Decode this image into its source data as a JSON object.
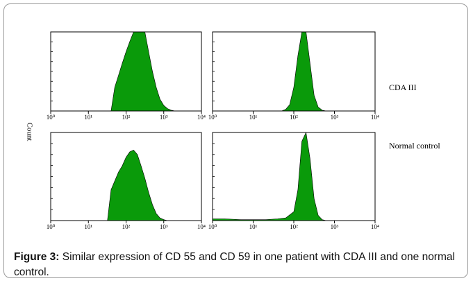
{
  "chart_data": [
    {
      "type": "area",
      "x": [
        40,
        50,
        63,
        79,
        100,
        126,
        158,
        200,
        251,
        316,
        398,
        501,
        631,
        794,
        1000,
        1259,
        1585,
        2000
      ],
      "values": [
        0,
        30,
        45,
        60,
        75,
        88,
        100,
        100,
        100,
        100,
        75,
        50,
        30,
        15,
        7,
        3,
        1,
        0
      ],
      "color": "#0a9a0a",
      "log_x": true,
      "xlim": [
        1,
        10000
      ],
      "ylim": [
        0,
        100
      ],
      "xticks": [
        {
          "value": 1,
          "label": "10⁰"
        },
        {
          "value": 10,
          "label": "10¹"
        },
        {
          "value": 100,
          "label": "10²"
        },
        {
          "value": 1000,
          "label": "10³"
        },
        {
          "value": 10000,
          "label": "10⁴"
        }
      ]
    },
    {
      "type": "area",
      "x": [
        50,
        63,
        79,
        100,
        126,
        158,
        200,
        251,
        316,
        398,
        501,
        631
      ],
      "values": [
        0,
        2,
        8,
        30,
        70,
        100,
        100,
        60,
        20,
        5,
        1,
        0
      ],
      "color": "#0a9a0a",
      "log_x": true,
      "xlim": [
        1,
        10000
      ],
      "ylim": [
        0,
        100
      ],
      "xticks": [
        {
          "value": 1,
          "label": "10⁰"
        },
        {
          "value": 10,
          "label": "10¹"
        },
        {
          "value": 100,
          "label": "10²"
        },
        {
          "value": 1000,
          "label": "10³"
        },
        {
          "value": 10000,
          "label": "10⁴"
        }
      ]
    },
    {
      "type": "area",
      "x": [
        32,
        40,
        50,
        63,
        79,
        100,
        126,
        158,
        200,
        251,
        316,
        398,
        501,
        631,
        794,
        1000,
        1259
      ],
      "values": [
        0,
        35,
        45,
        55,
        62,
        72,
        78,
        80,
        75,
        62,
        48,
        32,
        18,
        8,
        3,
        1,
        0
      ],
      "color": "#0a9a0a",
      "log_x": true,
      "xlim": [
        1,
        10000
      ],
      "ylim": [
        0,
        100
      ],
      "xticks": [
        {
          "value": 1,
          "label": "10⁰"
        },
        {
          "value": 10,
          "label": "10¹"
        },
        {
          "value": 100,
          "label": "10²"
        },
        {
          "value": 1000,
          "label": "10³"
        },
        {
          "value": 10000,
          "label": "10⁴"
        }
      ]
    },
    {
      "type": "area",
      "x": [
        1,
        2,
        5,
        10,
        20,
        40,
        63,
        100,
        126,
        158,
        200,
        251,
        316,
        398,
        501,
        631
      ],
      "values": [
        2,
        2,
        1,
        1,
        1,
        2,
        3,
        10,
        35,
        90,
        100,
        70,
        25,
        6,
        1,
        0
      ],
      "color": "#0a9a0a",
      "log_x": true,
      "xlim": [
        1,
        10000
      ],
      "ylim": [
        0,
        100
      ],
      "xticks": [
        {
          "value": 1,
          "label": "10⁰"
        },
        {
          "value": 10,
          "label": "10¹"
        },
        {
          "value": 100,
          "label": "10²"
        },
        {
          "value": 1000,
          "label": "10³"
        },
        {
          "value": 10000,
          "label": "10⁴"
        }
      ]
    }
  ],
  "y_label": "Count",
  "row_labels": [
    "CDA III",
    "Normal control"
  ],
  "caption": {
    "label": "Figure 3:",
    "text": "Similar expression of CD 55 and CD 59 in one patient with CDA III and one normal control."
  }
}
